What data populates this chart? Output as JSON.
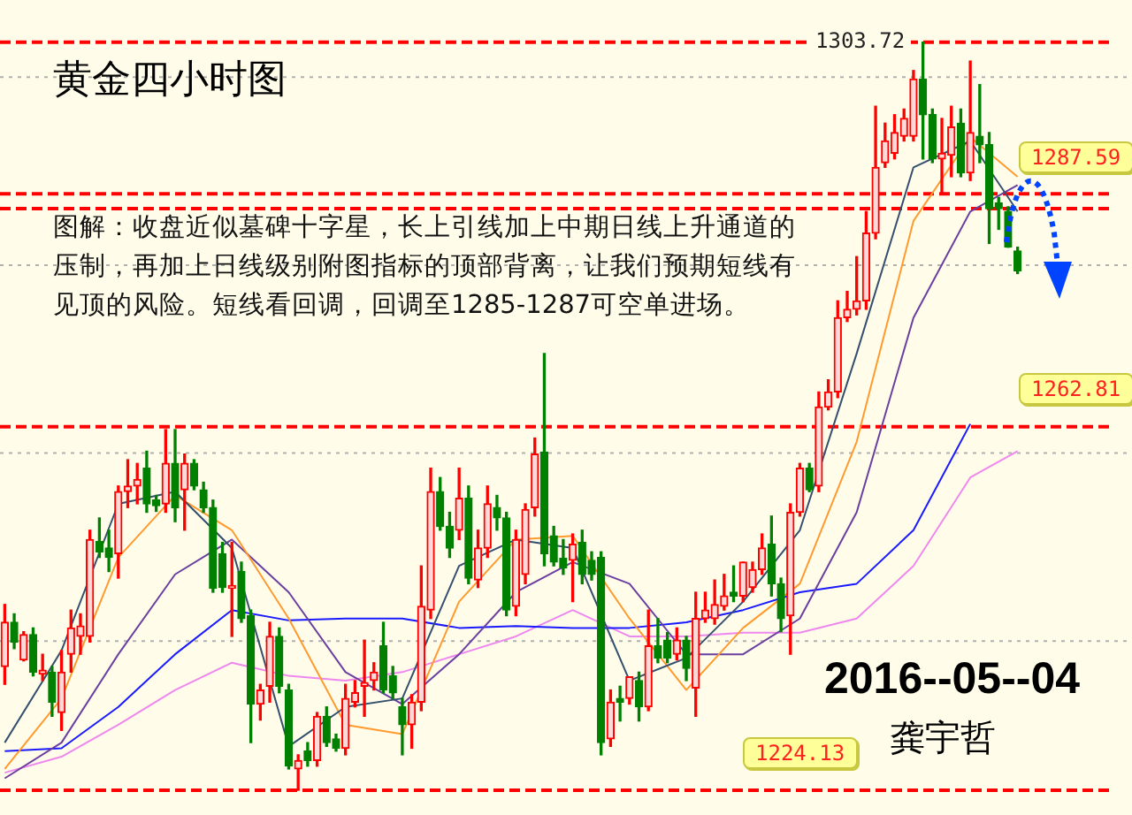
{
  "chart_data": {
    "type": "candlestick",
    "title": "黄金四小时图",
    "annotations": [
      "图解：收盘近似墓碑十字星，长上引线加上中期日线上升通道的压制，再加上日线级别附图指标的顶部背离，让我们预期短线有见顶的风险。短线看回调，回调至1285-1287可空单进场。",
      "2016--05--04",
      "龚宇哲"
    ],
    "categories": [
      null,
      null,
      null,
      null,
      null,
      null,
      null,
      null,
      null,
      null,
      null,
      null,
      null,
      null,
      null,
      null,
      null,
      null,
      null,
      null,
      null,
      null,
      null,
      null,
      null,
      null,
      null,
      null,
      null,
      null,
      null,
      null,
      null,
      null,
      null,
      null,
      null,
      null,
      null,
      null,
      null,
      null,
      null,
      null,
      null,
      null,
      null,
      null,
      null,
      null,
      null,
      null,
      null,
      null,
      null,
      null,
      null,
      null,
      null,
      null,
      null,
      null,
      null,
      null,
      null,
      null,
      null,
      null,
      null,
      null,
      null,
      null,
      null,
      null,
      null,
      null,
      null,
      null,
      null,
      null,
      null,
      null,
      null,
      null,
      null,
      null,
      null,
      null,
      null,
      null,
      null,
      null,
      null,
      null,
      null,
      null,
      null,
      null,
      null,
      null,
      null,
      null,
      null,
      null,
      null,
      null,
      null,
      null
    ],
    "ohlc": [
      [
        1237.3,
        1243.9,
        1235.4,
        1242.0
      ],
      [
        1242.0,
        1242.9,
        1239.2,
        1239.9
      ],
      [
        1238.0,
        1241.0,
        1237.9,
        1240.7
      ],
      [
        1240.7,
        1241.4,
        1236.3,
        1236.7
      ],
      [
        1236.5,
        1238.6,
        1235.8,
        1236.9
      ],
      [
        1236.7,
        1237.3,
        1232.0,
        1233.5
      ],
      [
        1232.4,
        1239.0,
        1230.5,
        1236.7
      ],
      [
        1238.6,
        1243.3,
        1236.7,
        1241.4
      ],
      [
        1240.5,
        1242.9,
        1238.6,
        1241.6
      ],
      [
        1240.5,
        1251.8,
        1239.9,
        1250.8
      ],
      [
        1250.6,
        1253.1,
        1248.9,
        1249.5
      ],
      [
        1249.9,
        1251.8,
        1247.4,
        1248.9
      ],
      [
        1249.3,
        1256.5,
        1246.7,
        1255.9
      ],
      [
        1255.9,
        1259.3,
        1254.2,
        1256.5
      ],
      [
        1256.5,
        1258.9,
        1254.6,
        1257.2
      ],
      [
        1258.4,
        1260.2,
        1253.7,
        1254.6
      ],
      [
        1255.0,
        1255.5,
        1253.8,
        1254.4
      ],
      [
        1254.6,
        1262.5,
        1253.7,
        1258.9
      ],
      [
        1258.9,
        1262.5,
        1252.7,
        1254.2
      ],
      [
        1256.1,
        1259.9,
        1251.8,
        1258.9
      ],
      [
        1258.9,
        1259.3,
        1256.1,
        1256.5
      ],
      [
        1256.1,
        1256.9,
        1253.7,
        1254.2
      ],
      [
        1254.2,
        1255.0,
        1245.2,
        1245.6
      ],
      [
        1249.3,
        1250.5,
        1245.2,
        1245.7
      ],
      [
        1245.6,
        1250.5,
        1240.5,
        1245.9
      ],
      [
        1247.4,
        1248.4,
        1242.0,
        1242.4
      ],
      [
        1242.7,
        1243.3,
        1229.2,
        1233.3
      ],
      [
        1233.3,
        1235.4,
        1231.6,
        1234.8
      ],
      [
        1235.2,
        1242.0,
        1233.5,
        1240.5
      ],
      [
        1240.5,
        1241.4,
        1234.5,
        1235.2
      ],
      [
        1234.8,
        1235.4,
        1226.4,
        1226.7
      ],
      [
        1226.4,
        1227.9,
        1224.13,
        1227.3
      ],
      [
        1228.3,
        1229.2,
        1226.7,
        1227.3
      ],
      [
        1227.3,
        1232.4,
        1226.7,
        1232.0
      ],
      [
        1232.0,
        1233.0,
        1228.8,
        1229.2
      ],
      [
        1229.6,
        1230.1,
        1228.3,
        1228.6
      ],
      [
        1228.6,
        1235.4,
        1227.9,
        1233.9
      ],
      [
        1233.5,
        1235.8,
        1233.0,
        1234.5
      ],
      [
        1235.2,
        1240.1,
        1232.0,
        1235.6
      ],
      [
        1235.8,
        1237.7,
        1234.8,
        1236.7
      ],
      [
        1239.5,
        1242.0,
        1234.5,
        1234.8
      ],
      [
        1236.3,
        1237.3,
        1233.9,
        1234.5
      ],
      [
        1233.0,
        1233.9,
        1227.9,
        1231.1
      ],
      [
        1231.1,
        1234.3,
        1228.6,
        1233.5
      ],
      [
        1233.5,
        1248.0,
        1232.6,
        1243.7
      ],
      [
        1243.3,
        1258.4,
        1242.4,
        1255.9
      ],
      [
        1255.9,
        1257.4,
        1251.8,
        1252.2
      ],
      [
        1252.2,
        1253.7,
        1248.9,
        1249.9
      ],
      [
        1251.8,
        1258.4,
        1250.8,
        1255.2
      ],
      [
        1255.2,
        1256.5,
        1246.1,
        1246.7
      ],
      [
        1246.5,
        1251.8,
        1245.7,
        1249.9
      ],
      [
        1249.9,
        1256.5,
        1248.9,
        1254.6
      ],
      [
        1254.2,
        1255.5,
        1251.8,
        1253.1
      ],
      [
        1253.1,
        1253.7,
        1242.7,
        1243.3
      ],
      [
        1243.7,
        1251.8,
        1242.7,
        1250.8
      ],
      [
        1247.1,
        1254.6,
        1246.1,
        1254.0
      ],
      [
        1254.2,
        1261.6,
        1253.3,
        1259.9
      ],
      [
        1260.1,
        1270.6,
        1248.0,
        1249.3
      ],
      [
        1251.2,
        1252.2,
        1248.0,
        1248.4
      ],
      [
        1248.8,
        1250.8,
        1247.1,
        1247.8
      ],
      [
        1248.6,
        1251.4,
        1244.2,
        1250.3
      ],
      [
        1250.5,
        1251.8,
        1246.1,
        1247.1
      ],
      [
        1248.6,
        1249.5,
        1246.5,
        1247.1
      ],
      [
        1248.9,
        1249.5,
        1227.9,
        1229.2
      ],
      [
        1229.6,
        1234.8,
        1228.8,
        1233.5
      ],
      [
        1233.9,
        1235.2,
        1231.5,
        1233.5
      ],
      [
        1233.9,
        1236.2,
        1233.3,
        1236.2
      ],
      [
        1235.8,
        1236.7,
        1231.5,
        1233.0
      ],
      [
        1233.0,
        1243.3,
        1232.6,
        1239.5
      ],
      [
        1239.5,
        1242.4,
        1237.7,
        1238.2
      ],
      [
        1240.1,
        1240.9,
        1237.7,
        1238.2
      ],
      [
        1238.6,
        1241.4,
        1238.0,
        1240.1
      ],
      [
        1240.1,
        1240.5,
        1235.8,
        1237.1
      ],
      [
        1235.0,
        1245.2,
        1232.0,
        1242.4
      ],
      [
        1242.4,
        1245.2,
        1242.0,
        1243.3
      ],
      [
        1242.4,
        1246.5,
        1241.8,
        1243.9
      ],
      [
        1243.7,
        1247.1,
        1243.3,
        1244.8
      ],
      [
        1245.2,
        1248.0,
        1244.2,
        1244.8
      ],
      [
        1244.8,
        1248.4,
        1244.2,
        1248.4
      ],
      [
        1245.7,
        1248.4,
        1245.2,
        1247.6
      ],
      [
        1247.6,
        1251.4,
        1247.1,
        1249.9
      ],
      [
        1250.3,
        1253.3,
        1244.8,
        1246.1
      ],
      [
        1246.1,
        1246.7,
        1241.0,
        1242.4
      ],
      [
        1242.7,
        1254.6,
        1238.6,
        1253.7
      ],
      [
        1253.7,
        1258.9,
        1253.3,
        1258.4
      ],
      [
        1258.4,
        1258.9,
        1255.9,
        1256.1
      ],
      [
        1256.5,
        1266.5,
        1255.9,
        1264.9
      ],
      [
        1264.9,
        1267.8,
        1264.6,
        1266.5
      ],
      [
        1266.5,
        1276.2,
        1265.9,
        1274.4
      ],
      [
        1274.4,
        1277.2,
        1274.0,
        1275.3
      ],
      [
        1275.3,
        1280.9,
        1274.7,
        1276.2
      ],
      [
        1276.2,
        1285.7,
        1275.3,
        1283.4
      ],
      [
        1283.4,
        1296.9,
        1282.8,
        1290.4
      ],
      [
        1290.9,
        1295.1,
        1290.4,
        1293.2
      ],
      [
        1291.9,
        1296.0,
        1291.3,
        1294.1
      ],
      [
        1293.7,
        1296.6,
        1293.2,
        1295.6
      ],
      [
        1293.7,
        1300.7,
        1293.2,
        1299.8
      ],
      [
        1299.8,
        1303.72,
        1291.3,
        1296.0
      ],
      [
        1296.0,
        1296.6,
        1290.9,
        1291.3
      ],
      [
        1291.3,
        1295.6,
        1287.5,
        1291.9
      ],
      [
        1291.7,
        1296.9,
        1289.4,
        1294.7
      ],
      [
        1295.1,
        1296.6,
        1289.4,
        1289.8
      ],
      [
        1289.8,
        1301.7,
        1289.0,
        1294.1
      ],
      [
        1293.7,
        1299.2,
        1290.9,
        1292.8
      ],
      [
        1292.8,
        1294.1,
        1282.3,
        1286.0
      ],
      [
        1286.6,
        1287.2,
        1283.8,
        1286.0
      ],
      [
        1285.7,
        1286.2,
        1281.9,
        1281.9
      ],
      [
        1281.5,
        1281.9,
        1279.1,
        1279.4
      ]
    ],
    "series": [
      {
        "type": "line",
        "color": "#34506e",
        "values": [
          1229.2,
          null,
          null,
          null,
          null,
          null,
          1239.0,
          null,
          null,
          null,
          null,
          null,
          1254.6,
          null,
          null,
          null,
          null,
          null,
          1255.9,
          null,
          null,
          null,
          null,
          null,
          1249.9,
          null,
          null,
          null,
          null,
          null,
          1228.8,
          null,
          null,
          null,
          null,
          null,
          1233.0,
          null,
          null,
          null,
          null,
          null,
          1233.9,
          null,
          null,
          null,
          null,
          null,
          1248.0,
          null,
          null,
          null,
          null,
          null,
          1250.8,
          null,
          null,
          null,
          null,
          null,
          1249.9,
          null,
          null,
          null,
          null,
          null,
          1235.8,
          null,
          null,
          null,
          null,
          null,
          1238.2,
          null,
          null,
          null,
          null,
          null,
          1244.2,
          null,
          null,
          null,
          null,
          null,
          1251.8,
          null,
          null,
          null,
          null,
          null,
          1270.6,
          null,
          null,
          null,
          null,
          null,
          1290.4,
          null,
          null,
          null,
          null,
          null,
          1293.2,
          null,
          null,
          null,
          null,
          1285.7
        ]
      },
      {
        "type": "line",
        "color": "#ff9a2e",
        "values": [
          1226.4,
          null,
          null,
          null,
          null,
          null,
          1233.9,
          null,
          null,
          null,
          null,
          null,
          1248.9,
          null,
          null,
          null,
          null,
          null,
          1255.5,
          null,
          null,
          null,
          null,
          null,
          1251.8,
          null,
          null,
          null,
          null,
          null,
          1242.4,
          null,
          null,
          null,
          null,
          null,
          1231.1,
          null,
          null,
          null,
          null,
          null,
          1230.1,
          null,
          null,
          null,
          null,
          null,
          1244.2,
          null,
          null,
          null,
          null,
          null,
          1250.8,
          null,
          null,
          null,
          null,
          null,
          1251.2,
          null,
          null,
          null,
          null,
          null,
          1242.4,
          null,
          null,
          null,
          null,
          null,
          1234.8,
          null,
          null,
          null,
          null,
          null,
          1241.4,
          null,
          null,
          null,
          null,
          null,
          1246.1,
          null,
          null,
          null,
          null,
          null,
          1261.2,
          null,
          null,
          null,
          null,
          null,
          1284.7,
          null,
          null,
          null,
          null,
          null,
          1293.6,
          null,
          null,
          null,
          null,
          1289.4
        ]
      },
      {
        "type": "line",
        "color": "#6b3fa0",
        "values": [
          1225.4,
          null,
          null,
          null,
          null,
          null,
          1229.2,
          null,
          null,
          null,
          null,
          null,
          1238.6,
          null,
          null,
          null,
          null,
          null,
          1247.1,
          null,
          null,
          null,
          null,
          null,
          1250.8,
          null,
          null,
          null,
          null,
          null,
          1245.2,
          null,
          null,
          null,
          null,
          null,
          1236.7,
          null,
          null,
          null,
          null,
          null,
          1233.3,
          null,
          null,
          null,
          null,
          null,
          1238.6,
          null,
          null,
          null,
          null,
          null,
          1245.2,
          null,
          null,
          null,
          null,
          null,
          1248.4,
          null,
          null,
          null,
          null,
          null,
          1246.1,
          null,
          null,
          null,
          null,
          null,
          1238.6,
          null,
          null,
          null,
          null,
          null,
          1238.6,
          null,
          null,
          null,
          null,
          null,
          1242.4,
          null,
          null,
          null,
          null,
          null,
          1253.7,
          null,
          null,
          null,
          null,
          null,
          1274.4,
          null,
          null,
          null,
          null,
          null,
          1285.7,
          null,
          null,
          null,
          null,
          1288.5
        ]
      },
      {
        "type": "line",
        "color": "#1a1aff",
        "values": [
          1228.3,
          null,
          null,
          null,
          null,
          null,
          1228.6,
          null,
          null,
          null,
          null,
          null,
          1233.0,
          null,
          null,
          null,
          null,
          null,
          1238.6,
          null,
          null,
          null,
          null,
          null,
          1243.3,
          null,
          null,
          null,
          null,
          null,
          1242.2,
          null,
          null,
          null,
          null,
          null,
          1242.4,
          null,
          null,
          null,
          null,
          null,
          1242.4,
          null,
          null,
          null,
          null,
          null,
          1241.4,
          null,
          null,
          null,
          null,
          null,
          1241.6,
          null,
          null,
          null,
          null,
          null,
          1241.4,
          null,
          null,
          null,
          null,
          null,
          1241.4,
          null,
          null,
          null,
          null,
          null,
          1242.0,
          null,
          null,
          null,
          null,
          null,
          1243.3,
          null,
          null,
          null,
          null,
          null,
          1245.2,
          null,
          null,
          null,
          null,
          null,
          1246.1,
          null,
          null,
          null,
          null,
          null,
          1251.8,
          null,
          null,
          null,
          null,
          null,
          1263.1,
          null,
          null,
          null,
          null,
          null
        ]
      },
      {
        "type": "line",
        "color": "#ee88ee",
        "values": [
          1226.0,
          null,
          null,
          null,
          null,
          null,
          1227.7,
          null,
          null,
          null,
          null,
          null,
          1231.1,
          null,
          null,
          null,
          null,
          null,
          1234.8,
          null,
          null,
          null,
          null,
          null,
          1237.7,
          null,
          null,
          null,
          null,
          null,
          1236.3,
          null,
          null,
          null,
          null,
          null,
          1235.8,
          null,
          null,
          null,
          null,
          null,
          1236.7,
          null,
          null,
          null,
          null,
          null,
          1238.6,
          null,
          null,
          null,
          null,
          null,
          1240.5,
          null,
          null,
          null,
          null,
          null,
          1243.3,
          null,
          null,
          null,
          null,
          null,
          1240.5,
          null,
          null,
          null,
          null,
          null,
          1240.5,
          null,
          null,
          null,
          null,
          null,
          1240.9,
          null,
          null,
          null,
          null,
          null,
          1240.9,
          null,
          null,
          null,
          null,
          null,
          1242.4,
          null,
          null,
          null,
          null,
          null,
          1248.0,
          null,
          null,
          null,
          null,
          null,
          1257.4,
          null,
          null,
          null,
          null,
          1260.2
        ]
      }
    ],
    "ref_lines": [
      {
        "axis": "y",
        "value": 1303.72,
        "label": "1303.72",
        "color": "#ff0000",
        "line_style": "dashed"
      },
      {
        "axis": "y",
        "value": 1287.59,
        "label": "1287.59",
        "color": "#ff0000",
        "line_style": "dashed"
      },
      {
        "axis": "y",
        "value": 1286.0,
        "label": null,
        "color": "#ff0000",
        "line_style": "dashed"
      },
      {
        "axis": "y",
        "value": 1262.81,
        "label": "1262.81",
        "color": "#ff0000",
        "line_style": "dashed"
      },
      {
        "axis": "y",
        "value": 1224.13,
        "label": "1224.13",
        "color": "#ff0000",
        "line_style": "dashed"
      }
    ],
    "ylim": [
      1221.5,
      1308.2
    ],
    "yticks": [
      {
        "value": 1240,
        "label": null
      },
      {
        "value": 1260,
        "label": null
      },
      {
        "value": 1280,
        "label": null
      },
      {
        "value": 1300,
        "label": null
      }
    ],
    "grid": "y",
    "legend": false,
    "marker": "none",
    "line_style": "solid"
  }
}
